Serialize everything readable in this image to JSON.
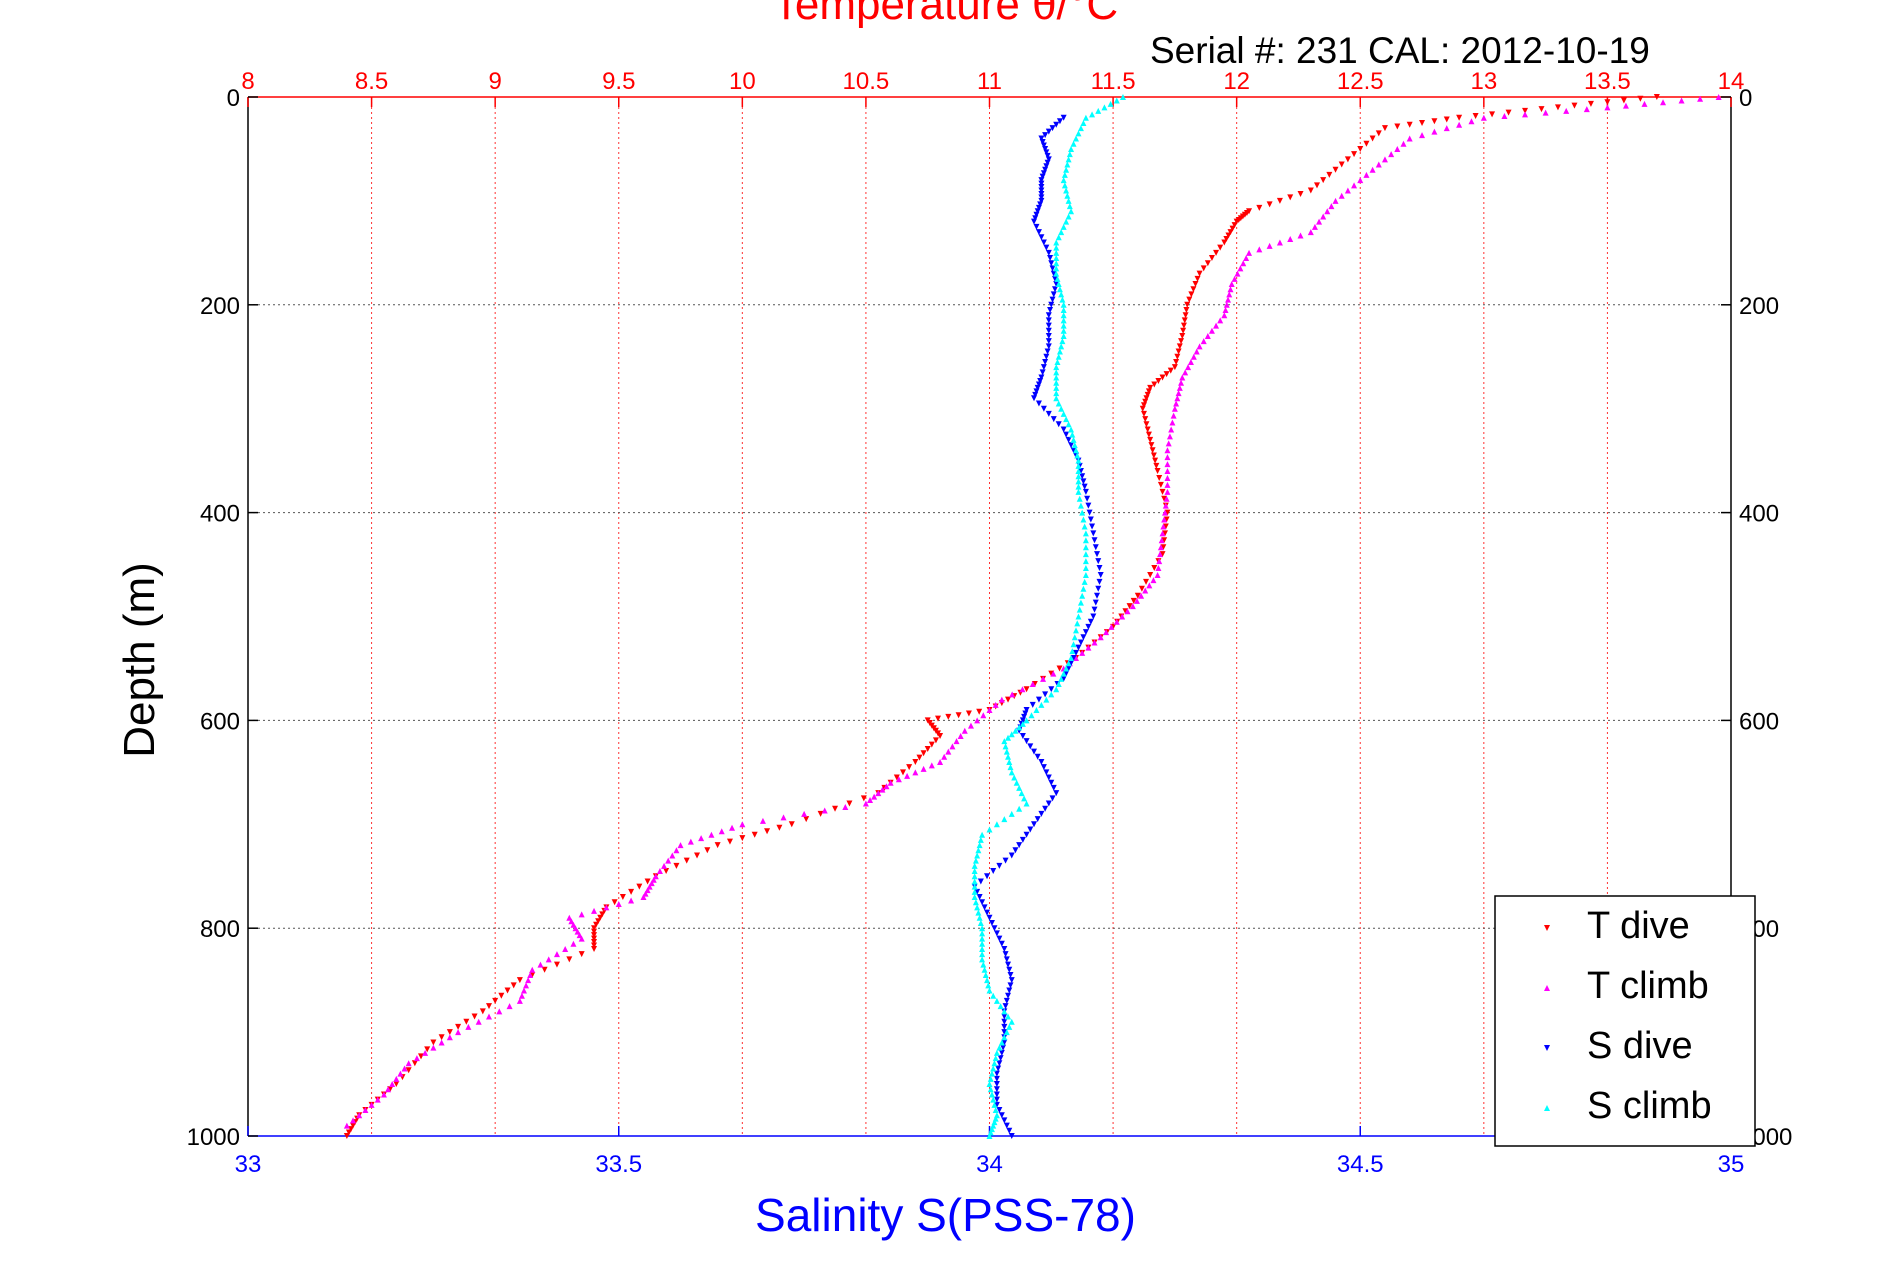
{
  "title": "Temperature θ/°C",
  "serial_text": "Serial #: 231  CAL: 2012-10-19",
  "ylabel": "Depth (m)",
  "xlabel": "Salinity S(PSS-78)",
  "colors": {
    "t_dive": "#ff0000",
    "t_climb": "#ff00ff",
    "s_dive": "#0000ff",
    "s_climb": "#00ffff",
    "temp_axis": "#ff0000",
    "sal_axis": "#0000ff"
  },
  "chart_data": {
    "type": "scatter",
    "grid": true,
    "legend_placement": "bottom-right",
    "y_axis": {
      "label": "Depth (m)",
      "range": [
        1000,
        0
      ],
      "ticks": [
        0,
        200,
        400,
        600,
        800,
        1000
      ],
      "reversed": true
    },
    "x_axis_top": {
      "label": "Temperature θ/°C",
      "range": [
        8,
        14
      ],
      "ticks": [
        8,
        8.5,
        9,
        9.5,
        10,
        10.5,
        11,
        11.5,
        12,
        12.5,
        13,
        13.5,
        14
      ],
      "tick_labels": [
        "8",
        "8.5",
        "9",
        "9.5",
        "10",
        "10.5",
        "11",
        "11.5",
        "12",
        "12.5",
        "13",
        "13.5",
        "14"
      ]
    },
    "x_axis_bottom": {
      "label": "Salinity S(PSS-78)",
      "range": [
        33,
        35
      ],
      "ticks": [
        33,
        33.5,
        34,
        34.5,
        35
      ],
      "tick_labels": [
        "33",
        "33.5",
        "34",
        "34.5",
        "35"
      ]
    },
    "series": [
      {
        "name": "T dive",
        "axis": "temperature",
        "points": [
          [
            0,
            13.7
          ],
          [
            10,
            13.3
          ],
          [
            20,
            12.9
          ],
          [
            30,
            12.6
          ],
          [
            60,
            12.45
          ],
          [
            90,
            12.3
          ],
          [
            110,
            12.05
          ],
          [
            120,
            12.0
          ],
          [
            140,
            11.95
          ],
          [
            170,
            11.85
          ],
          [
            200,
            11.8
          ],
          [
            230,
            11.78
          ],
          [
            260,
            11.75
          ],
          [
            280,
            11.65
          ],
          [
            300,
            11.62
          ],
          [
            330,
            11.65
          ],
          [
            360,
            11.68
          ],
          [
            400,
            11.72
          ],
          [
            440,
            11.7
          ],
          [
            480,
            11.6
          ],
          [
            510,
            11.5
          ],
          [
            540,
            11.35
          ],
          [
            570,
            11.15
          ],
          [
            590,
            11.0
          ],
          [
            600,
            10.75
          ],
          [
            615,
            10.8
          ],
          [
            640,
            10.7
          ],
          [
            670,
            10.55
          ],
          [
            700,
            10.2
          ],
          [
            720,
            9.9
          ],
          [
            750,
            9.65
          ],
          [
            780,
            9.45
          ],
          [
            800,
            9.4
          ],
          [
            820,
            9.4
          ],
          [
            850,
            9.1
          ],
          [
            880,
            8.95
          ],
          [
            910,
            8.75
          ],
          [
            950,
            8.6
          ],
          [
            980,
            8.45
          ],
          [
            1000,
            8.4
          ]
        ]
      },
      {
        "name": "T climb",
        "axis": "temperature",
        "points": [
          [
            0,
            13.95
          ],
          [
            10,
            13.5
          ],
          [
            20,
            13.0
          ],
          [
            40,
            12.7
          ],
          [
            70,
            12.55
          ],
          [
            100,
            12.4
          ],
          [
            130,
            12.3
          ],
          [
            150,
            12.05
          ],
          [
            180,
            11.98
          ],
          [
            210,
            11.95
          ],
          [
            240,
            11.85
          ],
          [
            270,
            11.78
          ],
          [
            300,
            11.75
          ],
          [
            340,
            11.72
          ],
          [
            380,
            11.72
          ],
          [
            420,
            11.7
          ],
          [
            460,
            11.68
          ],
          [
            490,
            11.58
          ],
          [
            520,
            11.45
          ],
          [
            550,
            11.3
          ],
          [
            580,
            11.05
          ],
          [
            610,
            10.9
          ],
          [
            640,
            10.8
          ],
          [
            660,
            10.6
          ],
          [
            680,
            10.5
          ],
          [
            700,
            10.0
          ],
          [
            720,
            9.75
          ],
          [
            750,
            9.65
          ],
          [
            770,
            9.6
          ],
          [
            790,
            9.3
          ],
          [
            810,
            9.35
          ],
          [
            840,
            9.15
          ],
          [
            870,
            9.1
          ],
          [
            900,
            8.85
          ],
          [
            930,
            8.65
          ],
          [
            960,
            8.55
          ],
          [
            990,
            8.4
          ]
        ]
      },
      {
        "name": "S dive",
        "axis": "salinity",
        "points": [
          [
            20,
            34.1
          ],
          [
            40,
            34.07
          ],
          [
            60,
            34.08
          ],
          [
            80,
            34.07
          ],
          [
            100,
            34.07
          ],
          [
            120,
            34.06
          ],
          [
            150,
            34.08
          ],
          [
            180,
            34.09
          ],
          [
            210,
            34.08
          ],
          [
            240,
            34.08
          ],
          [
            270,
            34.07
          ],
          [
            290,
            34.06
          ],
          [
            320,
            34.1
          ],
          [
            350,
            34.12
          ],
          [
            380,
            34.13
          ],
          [
            420,
            34.14
          ],
          [
            460,
            34.15
          ],
          [
            500,
            34.14
          ],
          [
            530,
            34.12
          ],
          [
            560,
            34.1
          ],
          [
            590,
            34.05
          ],
          [
            610,
            34.04
          ],
          [
            640,
            34.07
          ],
          [
            670,
            34.09
          ],
          [
            700,
            34.06
          ],
          [
            730,
            34.03
          ],
          [
            760,
            33.98
          ],
          [
            790,
            34.0
          ],
          [
            820,
            34.02
          ],
          [
            850,
            34.03
          ],
          [
            880,
            34.02
          ],
          [
            910,
            34.02
          ],
          [
            940,
            34.01
          ],
          [
            970,
            34.01
          ],
          [
            1000,
            34.03
          ]
        ]
      },
      {
        "name": "S climb",
        "axis": "salinity",
        "points": [
          [
            0,
            34.18
          ],
          [
            20,
            34.13
          ],
          [
            50,
            34.11
          ],
          [
            80,
            34.1
          ],
          [
            110,
            34.11
          ],
          [
            140,
            34.09
          ],
          [
            170,
            34.09
          ],
          [
            200,
            34.1
          ],
          [
            230,
            34.1
          ],
          [
            260,
            34.09
          ],
          [
            290,
            34.09
          ],
          [
            320,
            34.11
          ],
          [
            350,
            34.12
          ],
          [
            380,
            34.12
          ],
          [
            420,
            34.13
          ],
          [
            460,
            34.13
          ],
          [
            500,
            34.12
          ],
          [
            540,
            34.11
          ],
          [
            570,
            34.09
          ],
          [
            600,
            34.05
          ],
          [
            620,
            34.02
          ],
          [
            650,
            34.03
          ],
          [
            680,
            34.05
          ],
          [
            710,
            33.99
          ],
          [
            740,
            33.98
          ],
          [
            770,
            33.98
          ],
          [
            800,
            33.99
          ],
          [
            830,
            33.99
          ],
          [
            860,
            34.0
          ],
          [
            890,
            34.03
          ],
          [
            920,
            34.01
          ],
          [
            950,
            34.0
          ],
          [
            980,
            34.01
          ],
          [
            1000,
            34.0
          ]
        ]
      }
    ]
  }
}
